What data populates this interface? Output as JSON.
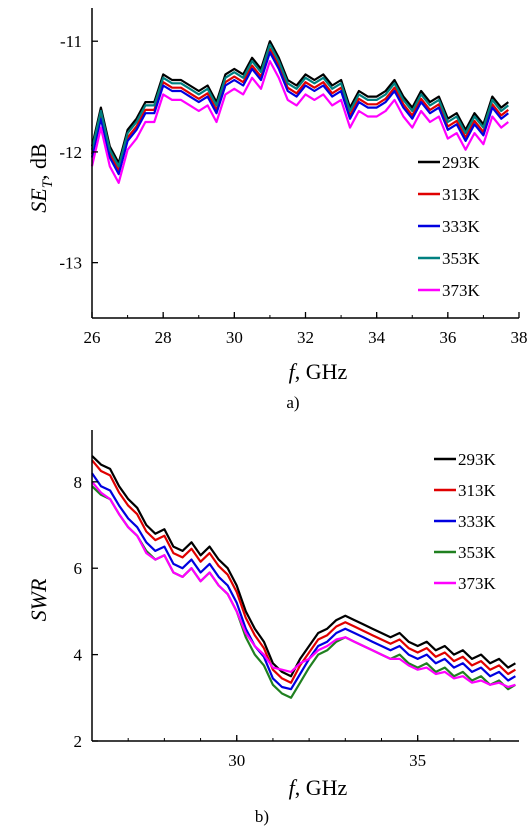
{
  "chart_data": [
    {
      "type": "line",
      "caption": "a)",
      "xlabel_italic": "f",
      "xlabel_rest": ", GHz",
      "ylabel_main": "SE",
      "ylabel_sub": "T",
      "ylabel_rest": ", dB",
      "xlim": [
        26,
        38
      ],
      "ylim": [
        -13.5,
        -10.7
      ],
      "xticks": [
        26,
        28,
        30,
        32,
        34,
        36,
        38
      ],
      "yticks": [
        -13,
        -12,
        -11
      ],
      "ytick_labels": [
        "-13",
        "-12",
        "-11"
      ],
      "legend_position": "right",
      "x": [
        26.0,
        26.25,
        26.5,
        26.75,
        27.0,
        27.25,
        27.5,
        27.75,
        28.0,
        28.25,
        28.5,
        28.75,
        29.0,
        29.25,
        29.5,
        29.75,
        30.0,
        30.25,
        30.5,
        30.75,
        31.0,
        31.25,
        31.5,
        31.75,
        32.0,
        32.25,
        32.5,
        32.75,
        33.0,
        33.25,
        33.5,
        33.75,
        34.0,
        34.25,
        34.5,
        34.75,
        35.0,
        35.25,
        35.5,
        35.75,
        36.0,
        36.25,
        36.5,
        36.75,
        37.0,
        37.25,
        37.5,
        37.7
      ],
      "series": [
        {
          "name": "293K",
          "color": "#000000",
          "values": [
            -11.95,
            -11.6,
            -11.95,
            -12.1,
            -11.8,
            -11.7,
            -11.55,
            -11.55,
            -11.3,
            -11.35,
            -11.35,
            -11.4,
            -11.45,
            -11.4,
            -11.55,
            -11.3,
            -11.25,
            -11.3,
            -11.15,
            -11.25,
            -11.0,
            -11.15,
            -11.35,
            -11.4,
            -11.3,
            -11.35,
            -11.3,
            -11.4,
            -11.35,
            -11.6,
            -11.45,
            -11.5,
            -11.5,
            -11.45,
            -11.35,
            -11.5,
            -11.6,
            -11.45,
            -11.55,
            -11.5,
            -11.7,
            -11.65,
            -11.8,
            -11.65,
            -11.75,
            -11.5,
            -11.6,
            -11.55
          ]
        },
        {
          "name": "313K",
          "color": "#e00000",
          "values": [
            -12.02,
            -11.67,
            -12.02,
            -12.17,
            -11.87,
            -11.77,
            -11.62,
            -11.62,
            -11.37,
            -11.42,
            -11.42,
            -11.47,
            -11.52,
            -11.47,
            -11.62,
            -11.37,
            -11.32,
            -11.37,
            -11.22,
            -11.32,
            -11.07,
            -11.22,
            -11.42,
            -11.47,
            -11.37,
            -11.42,
            -11.37,
            -11.47,
            -11.42,
            -11.67,
            -11.52,
            -11.57,
            -11.57,
            -11.52,
            -11.42,
            -11.57,
            -11.67,
            -11.52,
            -11.62,
            -11.57,
            -11.77,
            -11.72,
            -11.87,
            -11.72,
            -11.82,
            -11.57,
            -11.67,
            -11.62
          ]
        },
        {
          "name": "333K",
          "color": "#0000e0",
          "values": [
            -12.05,
            -11.7,
            -12.05,
            -12.2,
            -11.9,
            -11.8,
            -11.65,
            -11.65,
            -11.4,
            -11.45,
            -11.45,
            -11.5,
            -11.55,
            -11.5,
            -11.65,
            -11.4,
            -11.35,
            -11.4,
            -11.25,
            -11.35,
            -11.1,
            -11.25,
            -11.45,
            -11.5,
            -11.4,
            -11.45,
            -11.4,
            -11.5,
            -11.45,
            -11.7,
            -11.55,
            -11.6,
            -11.6,
            -11.55,
            -11.45,
            -11.6,
            -11.7,
            -11.55,
            -11.65,
            -11.6,
            -11.8,
            -11.75,
            -11.9,
            -11.75,
            -11.85,
            -11.6,
            -11.7,
            -11.65
          ]
        },
        {
          "name": "353K",
          "color": "#008080",
          "values": [
            -11.98,
            -11.63,
            -11.98,
            -12.13,
            -11.83,
            -11.73,
            -11.58,
            -11.58,
            -11.33,
            -11.38,
            -11.38,
            -11.43,
            -11.48,
            -11.43,
            -11.58,
            -11.33,
            -11.28,
            -11.33,
            -11.18,
            -11.28,
            -11.03,
            -11.18,
            -11.38,
            -11.43,
            -11.33,
            -11.38,
            -11.33,
            -11.43,
            -11.38,
            -11.63,
            -11.48,
            -11.53,
            -11.53,
            -11.48,
            -11.38,
            -11.53,
            -11.63,
            -11.48,
            -11.58,
            -11.53,
            -11.73,
            -11.68,
            -11.83,
            -11.68,
            -11.78,
            -11.53,
            -11.63,
            -11.58
          ]
        },
        {
          "name": "373K",
          "color": "#ff00ff",
          "values": [
            -12.13,
            -11.78,
            -12.13,
            -12.28,
            -11.98,
            -11.88,
            -11.73,
            -11.73,
            -11.48,
            -11.53,
            -11.53,
            -11.58,
            -11.63,
            -11.58,
            -11.73,
            -11.48,
            -11.43,
            -11.48,
            -11.33,
            -11.43,
            -11.18,
            -11.33,
            -11.53,
            -11.58,
            -11.48,
            -11.53,
            -11.48,
            -11.58,
            -11.53,
            -11.78,
            -11.63,
            -11.68,
            -11.68,
            -11.63,
            -11.53,
            -11.68,
            -11.78,
            -11.63,
            -11.73,
            -11.68,
            -11.88,
            -11.83,
            -11.98,
            -11.83,
            -11.93,
            -11.68,
            -11.78,
            -11.73
          ]
        }
      ]
    },
    {
      "type": "line",
      "caption": "b)",
      "xlabel_italic": "f",
      "xlabel_rest": ", GHz",
      "ylabel_main": "SWR",
      "xlim": [
        26,
        37.8
      ],
      "ylim": [
        2,
        9.2
      ],
      "xticks": [
        30,
        35
      ],
      "yticks": [
        2,
        4,
        6,
        8
      ],
      "ytick_labels": [
        "2",
        "4",
        "6",
        "8"
      ],
      "legend_position": "top-right",
      "x": [
        26.0,
        26.25,
        26.5,
        26.75,
        27.0,
        27.25,
        27.5,
        27.75,
        28.0,
        28.25,
        28.5,
        28.75,
        29.0,
        29.25,
        29.5,
        29.75,
        30.0,
        30.25,
        30.5,
        30.75,
        31.0,
        31.25,
        31.5,
        31.75,
        32.0,
        32.25,
        32.5,
        32.75,
        33.0,
        33.25,
        33.5,
        33.75,
        34.0,
        34.25,
        34.5,
        34.75,
        35.0,
        35.25,
        35.5,
        35.75,
        36.0,
        36.25,
        36.5,
        36.75,
        37.0,
        37.25,
        37.5,
        37.7
      ],
      "series": [
        {
          "name": "293K",
          "color": "#000000",
          "values": [
            8.6,
            8.4,
            8.3,
            7.9,
            7.6,
            7.4,
            7.0,
            6.8,
            6.9,
            6.5,
            6.4,
            6.6,
            6.3,
            6.5,
            6.2,
            6.0,
            5.6,
            5.0,
            4.6,
            4.3,
            3.8,
            3.6,
            3.5,
            3.9,
            4.2,
            4.5,
            4.6,
            4.8,
            4.9,
            4.8,
            4.7,
            4.6,
            4.5,
            4.4,
            4.5,
            4.3,
            4.2,
            4.3,
            4.1,
            4.2,
            4.0,
            4.1,
            3.9,
            4.0,
            3.8,
            3.9,
            3.7,
            3.8
          ]
        },
        {
          "name": "313K",
          "color": "#e00000",
          "values": [
            8.5,
            8.25,
            8.15,
            7.75,
            7.45,
            7.25,
            6.85,
            6.65,
            6.75,
            6.35,
            6.25,
            6.45,
            6.15,
            6.35,
            6.05,
            5.85,
            5.45,
            4.85,
            4.45,
            4.15,
            3.65,
            3.45,
            3.35,
            3.75,
            4.05,
            4.35,
            4.45,
            4.65,
            4.75,
            4.65,
            4.55,
            4.45,
            4.35,
            4.25,
            4.35,
            4.15,
            4.05,
            4.15,
            3.95,
            4.05,
            3.85,
            3.95,
            3.75,
            3.85,
            3.65,
            3.75,
            3.55,
            3.65
          ]
        },
        {
          "name": "333K",
          "color": "#0000e0",
          "values": [
            8.2,
            7.9,
            7.8,
            7.45,
            7.15,
            6.95,
            6.6,
            6.4,
            6.5,
            6.1,
            6.0,
            6.2,
            5.9,
            6.1,
            5.8,
            5.6,
            5.2,
            4.6,
            4.2,
            3.95,
            3.45,
            3.25,
            3.2,
            3.55,
            3.9,
            4.2,
            4.3,
            4.5,
            4.6,
            4.5,
            4.4,
            4.3,
            4.2,
            4.1,
            4.2,
            4.0,
            3.9,
            4.0,
            3.8,
            3.9,
            3.7,
            3.8,
            3.6,
            3.7,
            3.5,
            3.6,
            3.4,
            3.5
          ]
        },
        {
          "name": "353K",
          "color": "#208020",
          "values": [
            7.9,
            7.7,
            7.6,
            7.25,
            6.95,
            6.75,
            6.4,
            6.2,
            6.3,
            5.9,
            5.8,
            6.0,
            5.7,
            5.9,
            5.6,
            5.4,
            5.0,
            4.4,
            4.0,
            3.75,
            3.3,
            3.1,
            3.0,
            3.35,
            3.7,
            4.0,
            4.1,
            4.3,
            4.4,
            4.3,
            4.2,
            4.1,
            4.0,
            3.9,
            4.0,
            3.8,
            3.7,
            3.8,
            3.6,
            3.7,
            3.5,
            3.6,
            3.4,
            3.5,
            3.3,
            3.4,
            3.2,
            3.3
          ]
        },
        {
          "name": "373K",
          "color": "#ff00ff",
          "values": [
            8.0,
            7.75,
            7.6,
            7.25,
            6.95,
            6.75,
            6.35,
            6.2,
            6.3,
            5.9,
            5.8,
            6.0,
            5.7,
            5.9,
            5.6,
            5.4,
            5.0,
            4.5,
            4.2,
            4.0,
            3.7,
            3.65,
            3.6,
            3.8,
            3.9,
            4.1,
            4.2,
            4.35,
            4.4,
            4.3,
            4.2,
            4.1,
            4.0,
            3.9,
            3.9,
            3.75,
            3.65,
            3.7,
            3.55,
            3.6,
            3.45,
            3.5,
            3.35,
            3.4,
            3.3,
            3.35,
            3.25,
            3.3
          ]
        }
      ]
    }
  ]
}
